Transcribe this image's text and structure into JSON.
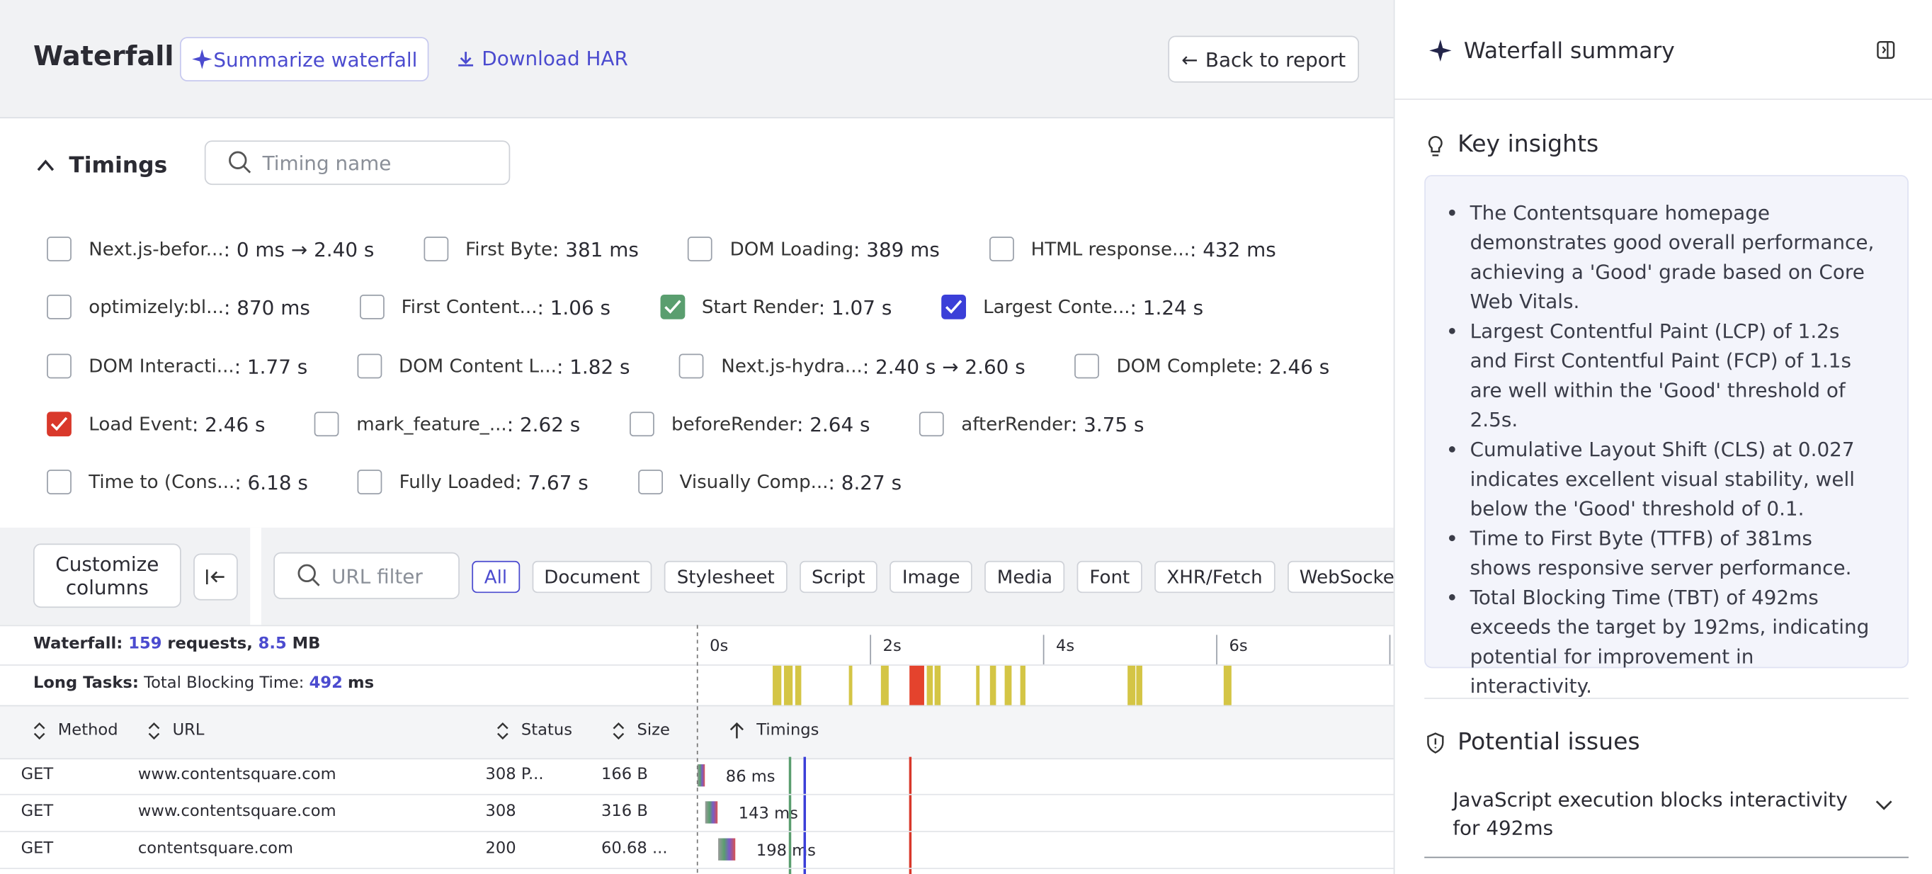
{
  "header": {
    "title": "Waterfall",
    "summarize": "Summarize waterfall",
    "download": "Download HAR",
    "back": "Back to report"
  },
  "timings_section": {
    "title": "Timings",
    "search_placeholder": "Timing name"
  },
  "timings": [
    [
      {
        "label": "Next.js-befor...",
        "value": ": 0 ms → 2.40 s"
      },
      {
        "label": "First Byte",
        "value": ": 381 ms"
      },
      {
        "label": "DOM Loading",
        "value": ": 389 ms"
      },
      {
        "label": "HTML response...",
        "value": ": 432 ms"
      }
    ],
    [
      {
        "label": "optimizely:bl...",
        "value": ": 870 ms"
      },
      {
        "label": "First Content...",
        "value": ": 1.06 s"
      },
      {
        "label": "Start Render",
        "value": {
          "value": 1.07,
          "label": ": 1.07 s"
        },
        "checked": true,
        "color": "#5a9e6f"
      },
      {
        "label": "Largest Conte...",
        "value": {
          "value": 1.24,
          "label": ": 1.24 s"
        },
        "checked": true,
        "color": "#3b3fd8"
      }
    ],
    [
      {
        "label": "DOM Interacti...",
        "value": ": 1.77 s"
      },
      {
        "label": "DOM Content L...",
        "value": ": 1.82 s"
      },
      {
        "label": "Next.js-hydra...",
        "value": ": 2.40 s → 2.60 s"
      },
      {
        "label": "DOM Complete",
        "value": ": 2.46 s"
      }
    ],
    [
      {
        "label": "Load Event",
        "value": {
          "value": 2.46,
          "label": ": 2.46 s"
        },
        "checked": true,
        "color": "#d9382b"
      },
      {
        "label": "mark_feature_...",
        "value": ": 2.62 s"
      },
      {
        "label": "beforeRender",
        "value": ": 2.64 s"
      },
      {
        "label": "afterRender",
        "value": ": 3.75 s"
      }
    ],
    [
      {
        "label": "Time to (Cons...",
        "value": ": 6.18 s"
      },
      {
        "label": "Fully Loaded",
        "value": ": 7.67 s"
      },
      {
        "label": "Visually Comp...",
        "value": ": 8.27 s"
      }
    ]
  ],
  "toolbar": {
    "customize": "Customize columns",
    "url_placeholder": "URL filter",
    "filters": [
      "All",
      "Document",
      "Stylesheet",
      "Script",
      "Image",
      "Media",
      "Font",
      "XHR/Fetch",
      "WebSocket"
    ],
    "active_filter": 0
  },
  "summary": {
    "waterfall_label": "Waterfall:",
    "requests": "159",
    "requests_unit": "requests,",
    "size": "8.5",
    "size_unit": "MB",
    "long_tasks_label": "Long Tasks:",
    "tbt_label": "Total Blocking Time:",
    "tbt": "492",
    "tbt_unit": "ms"
  },
  "timeline": {
    "xlim": [
      0,
      8
    ],
    "xticks": [
      {
        "value": 0,
        "label": "0s"
      },
      {
        "value": 2,
        "label": "2s"
      },
      {
        "value": 4,
        "label": "4s"
      },
      {
        "value": 6,
        "label": "6s"
      }
    ],
    "long_tasks": [
      {
        "start": 0.87,
        "end": 0.97,
        "color": "#d4c545"
      },
      {
        "start": 1.0,
        "end": 1.1,
        "color": "#d4c545"
      },
      {
        "start": 1.13,
        "end": 1.2,
        "color": "#d4c545"
      },
      {
        "start": 1.75,
        "end": 1.79,
        "color": "#d4c545"
      },
      {
        "start": 2.12,
        "end": 2.21,
        "color": "#d4c545"
      },
      {
        "start": 2.45,
        "end": 2.62,
        "color": "#e4432d"
      },
      {
        "start": 2.65,
        "end": 2.72,
        "color": "#d4c545"
      },
      {
        "start": 2.74,
        "end": 2.81,
        "color": "#d4c545"
      },
      {
        "start": 3.22,
        "end": 3.26,
        "color": "#d4c545"
      },
      {
        "start": 3.38,
        "end": 3.45,
        "color": "#d4c545"
      },
      {
        "start": 3.55,
        "end": 3.63,
        "color": "#d4c545"
      },
      {
        "start": 3.73,
        "end": 3.79,
        "color": "#d4c545"
      },
      {
        "start": 4.97,
        "end": 5.06,
        "color": "#d4c545"
      },
      {
        "start": 5.07,
        "end": 5.14,
        "color": "#d4c545"
      },
      {
        "start": 6.08,
        "end": 6.17,
        "color": "#d4c545"
      }
    ]
  },
  "table": {
    "columns": [
      "Method",
      "URL",
      "Status",
      "Size",
      "Timings"
    ],
    "rows": [
      {
        "method": "GET",
        "url": "www.contentsquare.com",
        "status": "308 P...",
        "size": "166 B",
        "start": 0.0,
        "duration": {
          "value": 86,
          "label": "86 ms"
        }
      },
      {
        "method": "GET",
        "url": "www.contentsquare.com",
        "status": "308",
        "size": "316 B",
        "start": 0.09,
        "duration": {
          "value": 143,
          "label": "143 ms"
        }
      },
      {
        "method": "GET",
        "url": "contentsquare.com",
        "status": "200",
        "size": "60.68 ...",
        "start": 0.24,
        "duration": {
          "value": 198,
          "label": "198 ms"
        }
      }
    ]
  },
  "sidebar": {
    "title": "Waterfall summary",
    "insights_title": "Key insights",
    "insights": [
      "The Contentsquare homepage demonstrates good overall performance, achieving a 'Good' grade based on Core Web Vitals.",
      "Largest Contentful Paint (LCP) of 1.2s and First Contentful Paint (FCP) of 1.1s are well within the 'Good' threshold of 2.5s.",
      "Cumulative Layout Shift (CLS) at 0.027 indicates excellent visual stability, well below the 'Good' threshold of 0.1.",
      "Time to First Byte (TTFB) of 381ms shows responsive server performance.",
      "Total Blocking Time (TBT) of 492ms exceeds the target by 192ms, indicating potential for improvement in interactivity."
    ],
    "issues_title": "Potential issues",
    "issues": [
      "JavaScript execution blocks interactivity for 492ms"
    ]
  }
}
